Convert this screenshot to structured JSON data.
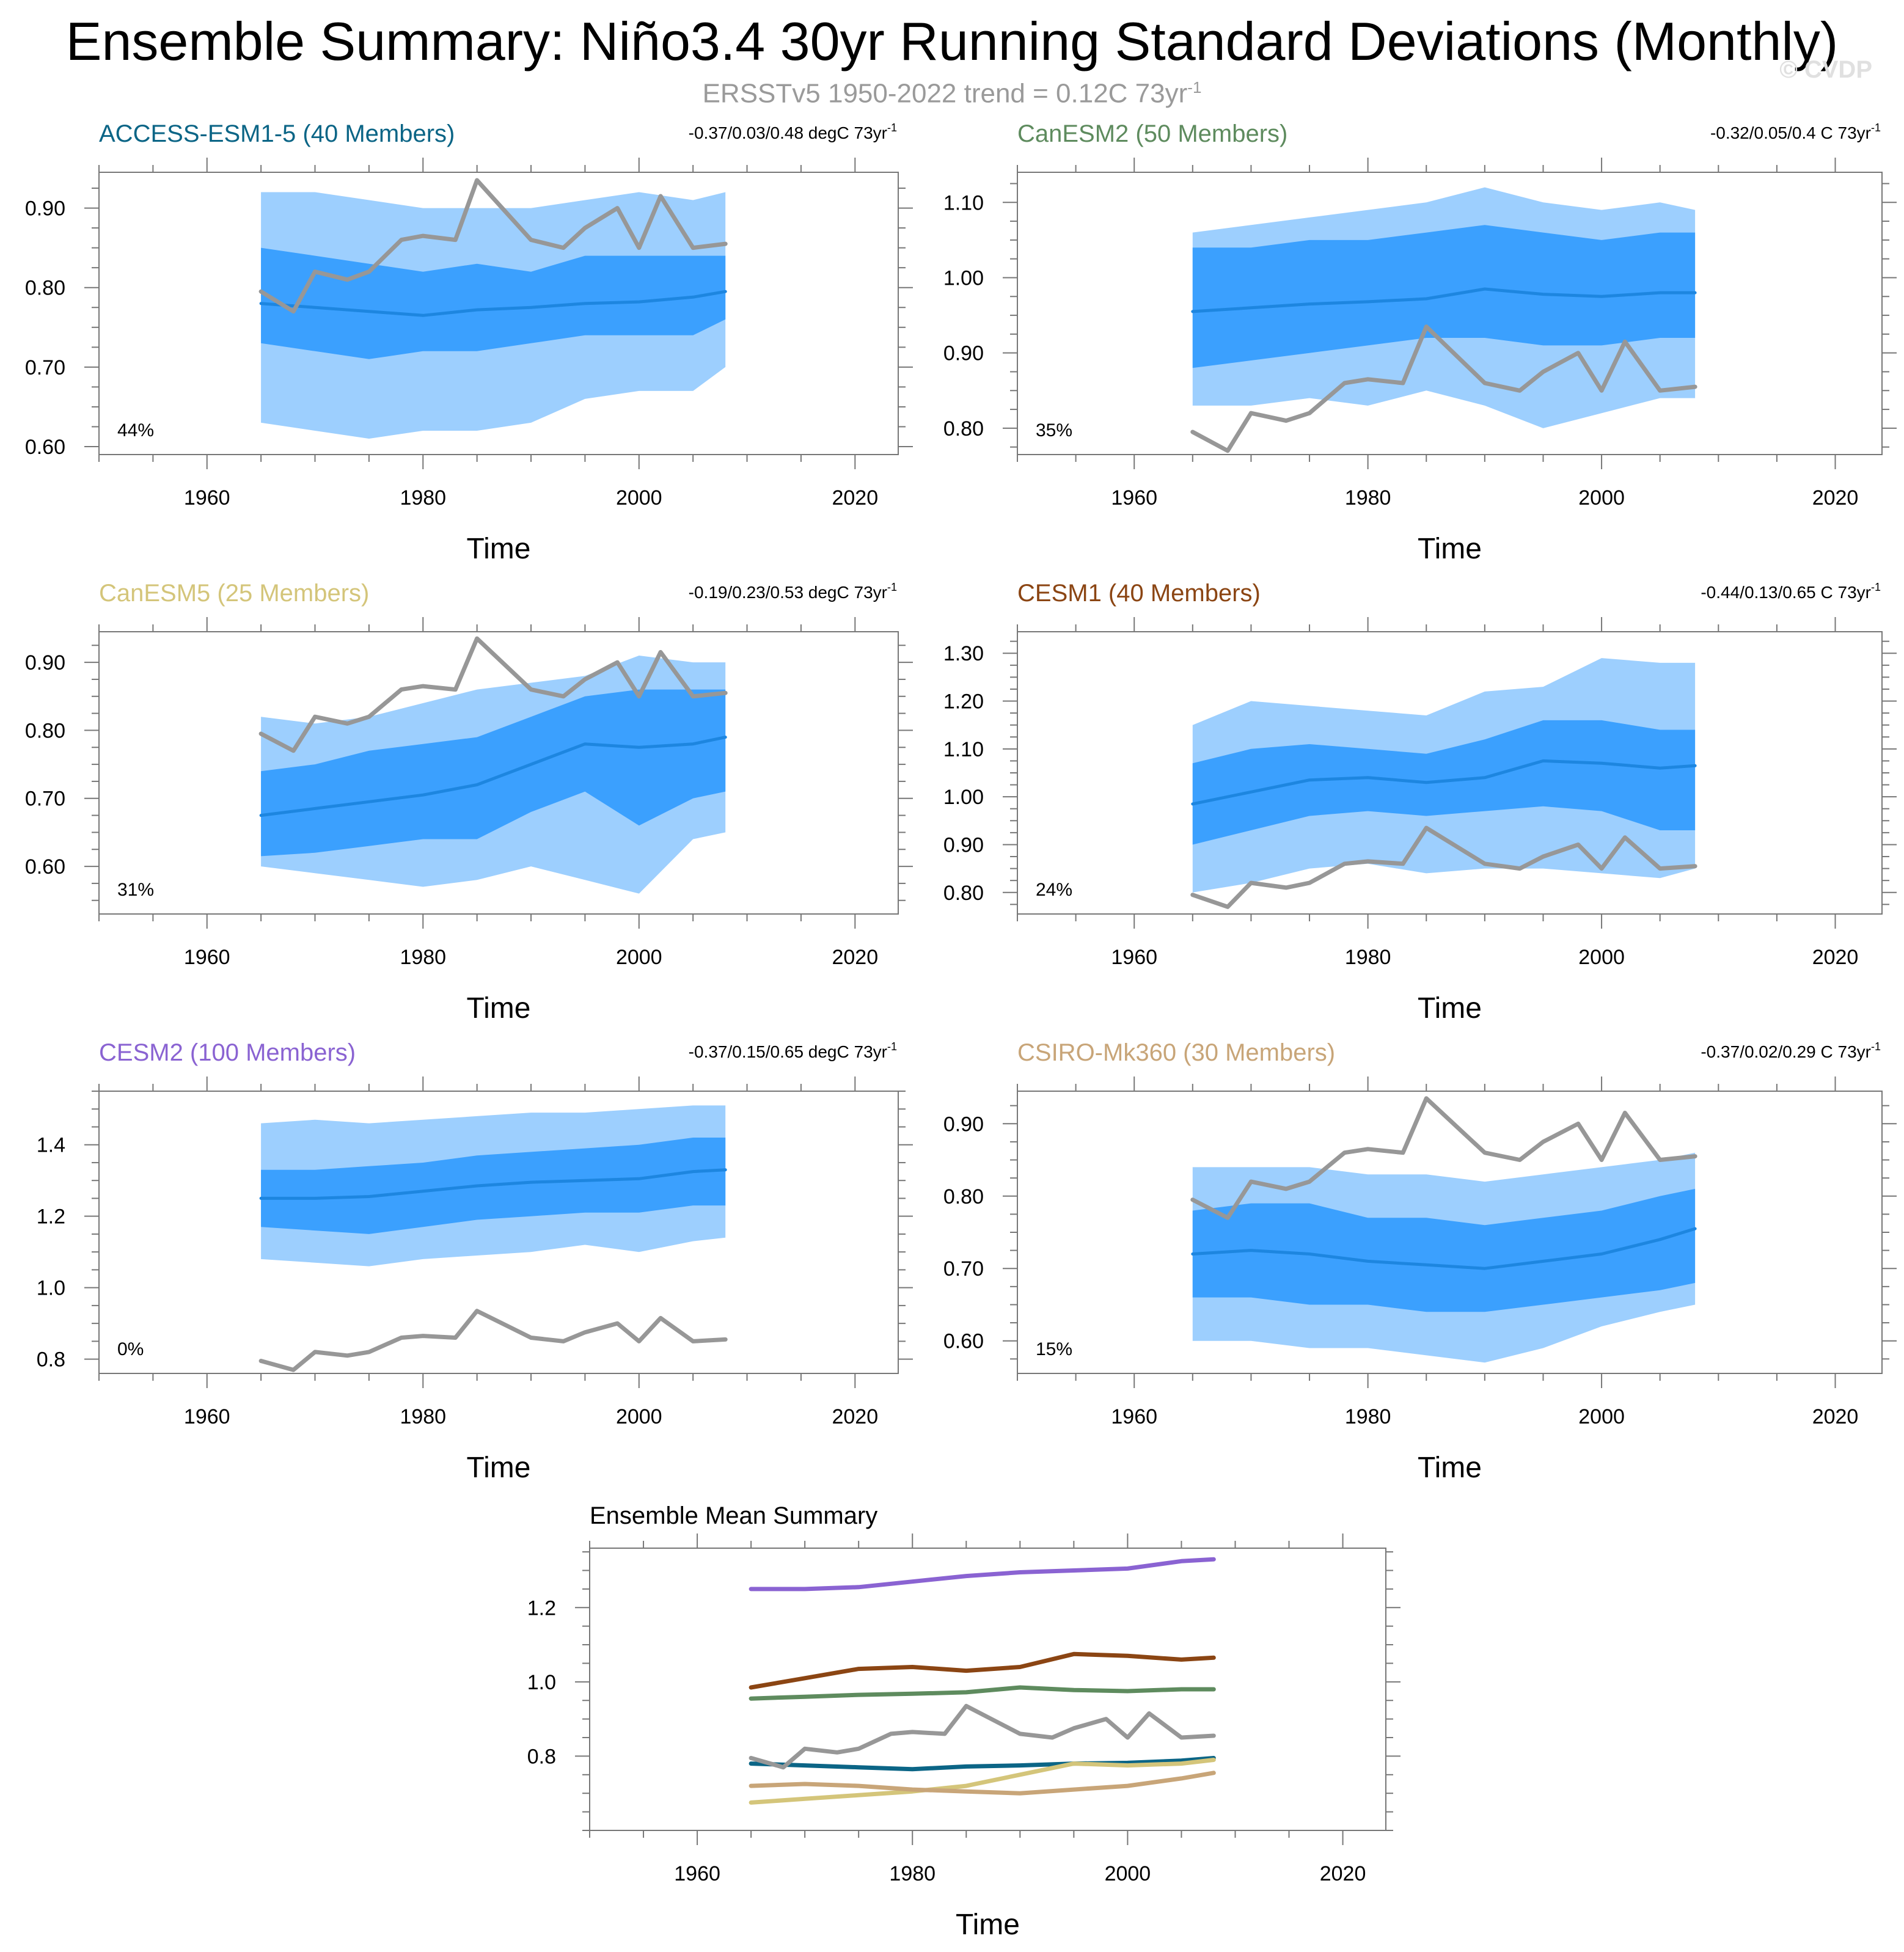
{
  "title": "Ensemble Summary: Niño3.4 30yr Running Standard Deviations (Monthly)",
  "subtitle": {
    "prefix": "ERSSTv5 1950-2022 trend = 0.12C 73yr",
    "exponent": "-1"
  },
  "copyright": "© CVDP",
  "colors": {
    "outer_band": "#9dcffe",
    "inner_band": "#3ba0fe",
    "ens_mean": "#1d86e0",
    "observed": "#979797"
  },
  "chart_data": [
    {
      "type": "area",
      "panel": "ACCESS-ESM1-5",
      "title": "ACCESS-ESM1-5 (40 Members)",
      "title_color": "#0b6586",
      "trend_label": "-0.37/0.03/0.48 degC 73yr",
      "trend_exponent": "-1",
      "percent_label": "44%",
      "xlabel": "Time",
      "xlim": [
        1950,
        2024
      ],
      "ylim": [
        0.59,
        0.945
      ],
      "yticks": [
        0.6,
        0.7,
        0.8,
        0.9
      ],
      "ytick_labels": [
        "0.60",
        "0.70",
        "0.80",
        "0.90"
      ],
      "xticks": [
        1960,
        1980,
        2000,
        2020
      ],
      "xtick_labels": [
        "1960",
        "1980",
        "2000",
        "2020"
      ],
      "x": [
        1965,
        1970,
        1975,
        1980,
        1985,
        1990,
        1995,
        2000,
        2005,
        2008
      ],
      "ens_mean": [
        0.78,
        0.775,
        0.77,
        0.765,
        0.772,
        0.775,
        0.78,
        0.782,
        0.788,
        0.795
      ],
      "band_inner": {
        "low": [
          0.73,
          0.72,
          0.71,
          0.72,
          0.72,
          0.73,
          0.74,
          0.74,
          0.74,
          0.76
        ],
        "high": [
          0.85,
          0.84,
          0.83,
          0.82,
          0.83,
          0.82,
          0.84,
          0.84,
          0.84,
          0.84
        ]
      },
      "band_outer": {
        "low": [
          0.63,
          0.62,
          0.61,
          0.62,
          0.62,
          0.63,
          0.66,
          0.67,
          0.67,
          0.7
        ],
        "high": [
          0.92,
          0.92,
          0.91,
          0.9,
          0.9,
          0.9,
          0.91,
          0.92,
          0.91,
          0.92
        ]
      },
      "observed": {
        "x": [
          1965,
          1968,
          1970,
          1973,
          1975,
          1978,
          1980,
          1983,
          1985,
          1988,
          1990,
          1993,
          1995,
          1998,
          2000,
          2002,
          2005,
          2008
        ],
        "y": [
          0.795,
          0.77,
          0.82,
          0.81,
          0.82,
          0.86,
          0.865,
          0.86,
          0.935,
          0.89,
          0.86,
          0.85,
          0.875,
          0.9,
          0.85,
          0.915,
          0.85,
          0.855
        ]
      }
    },
    {
      "type": "area",
      "panel": "CanESM2",
      "title": "CanESM2 (50 Members)",
      "title_color": "#5e8b5e",
      "trend_label": "-0.32/0.05/0.4 C 73yr",
      "trend_exponent": "-1",
      "percent_label": "35%",
      "xlabel": "Time",
      "xlim": [
        1950,
        2024
      ],
      "ylim": [
        0.765,
        1.14
      ],
      "yticks": [
        0.8,
        0.9,
        1.0,
        1.1
      ],
      "ytick_labels": [
        "0.80",
        "0.90",
        "1.00",
        "1.10"
      ],
      "xticks": [
        1960,
        1980,
        2000,
        2020
      ],
      "xtick_labels": [
        "1960",
        "1980",
        "2000",
        "2020"
      ],
      "x": [
        1965,
        1970,
        1975,
        1980,
        1985,
        1990,
        1995,
        2000,
        2005,
        2008
      ],
      "ens_mean": [
        0.955,
        0.96,
        0.965,
        0.968,
        0.972,
        0.985,
        0.978,
        0.975,
        0.98,
        0.98
      ],
      "band_inner": {
        "low": [
          0.88,
          0.89,
          0.9,
          0.91,
          0.92,
          0.92,
          0.91,
          0.91,
          0.92,
          0.92
        ],
        "high": [
          1.04,
          1.04,
          1.05,
          1.05,
          1.06,
          1.07,
          1.06,
          1.05,
          1.06,
          1.06
        ]
      },
      "band_outer": {
        "low": [
          0.83,
          0.83,
          0.84,
          0.83,
          0.85,
          0.83,
          0.8,
          0.82,
          0.84,
          0.84
        ],
        "high": [
          1.06,
          1.07,
          1.08,
          1.09,
          1.1,
          1.12,
          1.1,
          1.09,
          1.1,
          1.09
        ]
      },
      "observed": {
        "x": [
          1965,
          1968,
          1970,
          1973,
          1975,
          1978,
          1980,
          1983,
          1985,
          1988,
          1990,
          1993,
          1995,
          1998,
          2000,
          2002,
          2005,
          2008
        ],
        "y": [
          0.795,
          0.77,
          0.82,
          0.81,
          0.82,
          0.86,
          0.865,
          0.86,
          0.935,
          0.89,
          0.86,
          0.85,
          0.875,
          0.9,
          0.85,
          0.915,
          0.85,
          0.855
        ]
      }
    },
    {
      "type": "area",
      "panel": "CanESM5",
      "title": "CanESM5 (25 Members)",
      "title_color": "#d4c57a",
      "trend_label": "-0.19/0.23/0.53 degC 73yr",
      "trend_exponent": "-1",
      "percent_label": "31%",
      "xlabel": "Time",
      "xlim": [
        1950,
        2024
      ],
      "ylim": [
        0.53,
        0.945
      ],
      "yticks": [
        0.6,
        0.7,
        0.8,
        0.9
      ],
      "ytick_labels": [
        "0.60",
        "0.70",
        "0.80",
        "0.90"
      ],
      "xticks": [
        1960,
        1980,
        2000,
        2020
      ],
      "xtick_labels": [
        "1960",
        "1980",
        "2000",
        "2020"
      ],
      "x": [
        1965,
        1970,
        1975,
        1980,
        1985,
        1990,
        1995,
        2000,
        2005,
        2008
      ],
      "ens_mean": [
        0.675,
        0.685,
        0.695,
        0.705,
        0.72,
        0.75,
        0.78,
        0.775,
        0.78,
        0.79
      ],
      "band_inner": {
        "low": [
          0.615,
          0.62,
          0.63,
          0.64,
          0.64,
          0.68,
          0.71,
          0.66,
          0.7,
          0.71
        ],
        "high": [
          0.74,
          0.75,
          0.77,
          0.78,
          0.79,
          0.82,
          0.85,
          0.86,
          0.86,
          0.86
        ]
      },
      "band_outer": {
        "low": [
          0.6,
          0.59,
          0.58,
          0.57,
          0.58,
          0.6,
          0.58,
          0.56,
          0.64,
          0.65
        ],
        "high": [
          0.82,
          0.81,
          0.82,
          0.84,
          0.86,
          0.87,
          0.88,
          0.91,
          0.9,
          0.9
        ]
      },
      "observed": {
        "x": [
          1965,
          1968,
          1970,
          1973,
          1975,
          1978,
          1980,
          1983,
          1985,
          1988,
          1990,
          1993,
          1995,
          1998,
          2000,
          2002,
          2005,
          2008
        ],
        "y": [
          0.795,
          0.77,
          0.82,
          0.81,
          0.82,
          0.86,
          0.865,
          0.86,
          0.935,
          0.89,
          0.86,
          0.85,
          0.875,
          0.9,
          0.85,
          0.915,
          0.85,
          0.855
        ]
      }
    },
    {
      "type": "area",
      "panel": "CESM1",
      "title": "CESM1 (40 Members)",
      "title_color": "#8b4513",
      "trend_label": "-0.44/0.13/0.65 C 73yr",
      "trend_exponent": "-1",
      "percent_label": "24%",
      "xlabel": "Time",
      "xlim": [
        1950,
        2024
      ],
      "ylim": [
        0.755,
        1.345
      ],
      "yticks": [
        0.8,
        0.9,
        1.0,
        1.1,
        1.2,
        1.3
      ],
      "ytick_labels": [
        "0.80",
        "0.90",
        "1.00",
        "1.10",
        "1.20",
        "1.30"
      ],
      "xticks": [
        1960,
        1980,
        2000,
        2020
      ],
      "xtick_labels": [
        "1960",
        "1980",
        "2000",
        "2020"
      ],
      "x": [
        1965,
        1970,
        1975,
        1980,
        1985,
        1990,
        1995,
        2000,
        2005,
        2008
      ],
      "ens_mean": [
        0.985,
        1.01,
        1.035,
        1.04,
        1.03,
        1.04,
        1.075,
        1.07,
        1.06,
        1.065
      ],
      "band_inner": {
        "low": [
          0.9,
          0.93,
          0.96,
          0.97,
          0.96,
          0.97,
          0.98,
          0.97,
          0.93,
          0.93
        ],
        "high": [
          1.07,
          1.1,
          1.11,
          1.1,
          1.09,
          1.12,
          1.16,
          1.16,
          1.14,
          1.14
        ]
      },
      "band_outer": {
        "low": [
          0.8,
          0.82,
          0.85,
          0.86,
          0.84,
          0.85,
          0.85,
          0.84,
          0.83,
          0.85
        ],
        "high": [
          1.15,
          1.2,
          1.19,
          1.18,
          1.17,
          1.22,
          1.23,
          1.29,
          1.28,
          1.28
        ]
      },
      "observed": {
        "x": [
          1965,
          1968,
          1970,
          1973,
          1975,
          1978,
          1980,
          1983,
          1985,
          1988,
          1990,
          1993,
          1995,
          1998,
          2000,
          2002,
          2005,
          2008
        ],
        "y": [
          0.795,
          0.77,
          0.82,
          0.81,
          0.82,
          0.86,
          0.865,
          0.86,
          0.935,
          0.89,
          0.86,
          0.85,
          0.875,
          0.9,
          0.85,
          0.915,
          0.85,
          0.855
        ]
      }
    },
    {
      "type": "area",
      "panel": "CESM2",
      "title": "CESM2 (100 Members)",
      "title_color": "#8a63d2",
      "trend_label": "-0.37/0.15/0.65 degC 73yr",
      "trend_exponent": "-1",
      "percent_label": "0%",
      "xlabel": "Time",
      "xlim": [
        1950,
        2024
      ],
      "ylim": [
        0.76,
        1.55
      ],
      "yticks": [
        0.8,
        1.0,
        1.2,
        1.4
      ],
      "ytick_labels": [
        "0.8",
        "1.0",
        "1.2",
        "1.4"
      ],
      "xticks": [
        1960,
        1980,
        2000,
        2020
      ],
      "xtick_labels": [
        "1960",
        "1980",
        "2000",
        "2020"
      ],
      "x": [
        1965,
        1970,
        1975,
        1980,
        1985,
        1990,
        1995,
        2000,
        2005,
        2008
      ],
      "ens_mean": [
        1.25,
        1.25,
        1.255,
        1.27,
        1.285,
        1.295,
        1.3,
        1.305,
        1.325,
        1.33
      ],
      "band_inner": {
        "low": [
          1.17,
          1.16,
          1.15,
          1.17,
          1.19,
          1.2,
          1.21,
          1.21,
          1.23,
          1.23
        ],
        "high": [
          1.33,
          1.33,
          1.34,
          1.35,
          1.37,
          1.38,
          1.39,
          1.4,
          1.42,
          1.42
        ]
      },
      "band_outer": {
        "low": [
          1.08,
          1.07,
          1.06,
          1.08,
          1.09,
          1.1,
          1.12,
          1.1,
          1.13,
          1.14
        ],
        "high": [
          1.46,
          1.47,
          1.46,
          1.47,
          1.48,
          1.49,
          1.49,
          1.5,
          1.51,
          1.51
        ]
      },
      "observed": {
        "x": [
          1965,
          1968,
          1970,
          1973,
          1975,
          1978,
          1980,
          1983,
          1985,
          1988,
          1990,
          1993,
          1995,
          1998,
          2000,
          2002,
          2005,
          2008
        ],
        "y": [
          0.795,
          0.77,
          0.82,
          0.81,
          0.82,
          0.86,
          0.865,
          0.86,
          0.935,
          0.89,
          0.86,
          0.85,
          0.875,
          0.9,
          0.85,
          0.915,
          0.85,
          0.855
        ]
      }
    },
    {
      "type": "area",
      "panel": "CSIRO-Mk360",
      "title": "CSIRO-Mk360 (30 Members)",
      "title_color": "#c8a578",
      "trend_label": "-0.37/0.02/0.29 C 73yr",
      "trend_exponent": "-1",
      "percent_label": "15%",
      "xlabel": "Time",
      "xlim": [
        1950,
        2024
      ],
      "ylim": [
        0.555,
        0.945
      ],
      "yticks": [
        0.6,
        0.7,
        0.8,
        0.9
      ],
      "ytick_labels": [
        "0.60",
        "0.70",
        "0.80",
        "0.90"
      ],
      "xticks": [
        1960,
        1980,
        2000,
        2020
      ],
      "xtick_labels": [
        "1960",
        "1980",
        "2000",
        "2020"
      ],
      "x": [
        1965,
        1970,
        1975,
        1980,
        1985,
        1990,
        1995,
        2000,
        2005,
        2008
      ],
      "ens_mean": [
        0.72,
        0.725,
        0.72,
        0.71,
        0.705,
        0.7,
        0.71,
        0.72,
        0.74,
        0.755
      ],
      "band_inner": {
        "low": [
          0.66,
          0.66,
          0.65,
          0.65,
          0.64,
          0.64,
          0.65,
          0.66,
          0.67,
          0.68
        ],
        "high": [
          0.78,
          0.79,
          0.79,
          0.77,
          0.77,
          0.76,
          0.77,
          0.78,
          0.8,
          0.81
        ],
        "note": ""
      },
      "band_outer": {
        "low": [
          0.6,
          0.6,
          0.59,
          0.59,
          0.58,
          0.57,
          0.59,
          0.62,
          0.64,
          0.65
        ],
        "high": [
          0.84,
          0.84,
          0.84,
          0.83,
          0.83,
          0.82,
          0.83,
          0.84,
          0.85,
          0.86
        ]
      },
      "observed": {
        "x": [
          1965,
          1968,
          1970,
          1973,
          1975,
          1978,
          1980,
          1983,
          1985,
          1988,
          1990,
          1993,
          1995,
          1998,
          2000,
          2002,
          2005,
          2008
        ],
        "y": [
          0.795,
          0.77,
          0.82,
          0.81,
          0.82,
          0.86,
          0.865,
          0.86,
          0.935,
          0.89,
          0.86,
          0.85,
          0.875,
          0.9,
          0.85,
          0.915,
          0.85,
          0.855
        ]
      }
    },
    {
      "type": "line",
      "panel": "Ensemble Mean Summary",
      "title": "Ensemble Mean Summary",
      "xlabel": "Time",
      "xlim": [
        1950,
        2024
      ],
      "ylim": [
        0.6,
        1.36
      ],
      "yticks": [
        0.8,
        1.0,
        1.2
      ],
      "ytick_labels": [
        "0.8",
        "1.0",
        "1.2"
      ],
      "xticks": [
        1960,
        1980,
        2000,
        2020
      ],
      "xtick_labels": [
        "1960",
        "1980",
        "2000",
        "2020"
      ],
      "x": [
        1965,
        1970,
        1975,
        1980,
        1985,
        1990,
        1995,
        2000,
        2005,
        2008
      ],
      "series": [
        {
          "name": "CESM2",
          "color": "#8a63d2",
          "values": [
            1.25,
            1.25,
            1.255,
            1.27,
            1.285,
            1.295,
            1.3,
            1.305,
            1.325,
            1.33
          ]
        },
        {
          "name": "CESM1",
          "color": "#8b4513",
          "values": [
            0.985,
            1.01,
            1.035,
            1.04,
            1.03,
            1.04,
            1.075,
            1.07,
            1.06,
            1.065
          ]
        },
        {
          "name": "CanESM2",
          "color": "#5e8b5e",
          "values": [
            0.955,
            0.96,
            0.965,
            0.968,
            0.972,
            0.985,
            0.978,
            0.975,
            0.98,
            0.98
          ]
        },
        {
          "name": "ACCESS-ESM1-5",
          "color": "#0b6586",
          "values": [
            0.78,
            0.775,
            0.77,
            0.765,
            0.772,
            0.775,
            0.78,
            0.782,
            0.788,
            0.795
          ]
        },
        {
          "name": "CanESM5",
          "color": "#d4c57a",
          "values": [
            0.675,
            0.685,
            0.695,
            0.705,
            0.72,
            0.75,
            0.78,
            0.775,
            0.78,
            0.79
          ]
        },
        {
          "name": "CSIRO-Mk360",
          "color": "#c8a578",
          "values": [
            0.72,
            0.725,
            0.72,
            0.71,
            0.705,
            0.7,
            0.71,
            0.72,
            0.74,
            0.755
          ]
        }
      ],
      "observed": {
        "x": [
          1965,
          1968,
          1970,
          1973,
          1975,
          1978,
          1980,
          1983,
          1985,
          1988,
          1990,
          1993,
          1995,
          1998,
          2000,
          2002,
          2005,
          2008
        ],
        "y": [
          0.795,
          0.77,
          0.82,
          0.81,
          0.82,
          0.86,
          0.865,
          0.86,
          0.935,
          0.89,
          0.86,
          0.85,
          0.875,
          0.9,
          0.85,
          0.915,
          0.85,
          0.855
        ]
      }
    }
  ]
}
